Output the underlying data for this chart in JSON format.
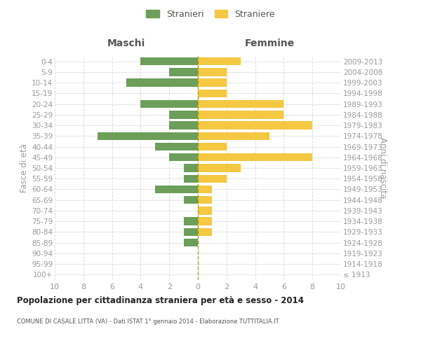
{
  "age_groups": [
    "100+",
    "95-99",
    "90-94",
    "85-89",
    "80-84",
    "75-79",
    "70-74",
    "65-69",
    "60-64",
    "55-59",
    "50-54",
    "45-49",
    "40-44",
    "35-39",
    "30-34",
    "25-29",
    "20-24",
    "15-19",
    "10-14",
    "5-9",
    "0-4"
  ],
  "birth_years": [
    "≤ 1913",
    "1914-1918",
    "1919-1923",
    "1924-1928",
    "1929-1933",
    "1934-1938",
    "1939-1943",
    "1944-1948",
    "1949-1953",
    "1954-1958",
    "1959-1963",
    "1964-1968",
    "1969-1973",
    "1974-1978",
    "1979-1983",
    "1984-1988",
    "1989-1993",
    "1994-1998",
    "1999-2003",
    "2004-2008",
    "2009-2013"
  ],
  "males": [
    0,
    0,
    0,
    1,
    1,
    1,
    0,
    1,
    3,
    1,
    1,
    2,
    3,
    7,
    2,
    2,
    4,
    0,
    5,
    2,
    4
  ],
  "females": [
    0,
    0,
    0,
    0,
    1,
    1,
    1,
    1,
    1,
    2,
    3,
    8,
    2,
    5,
    8,
    6,
    6,
    2,
    2,
    2,
    3
  ],
  "male_color": "#6d9e5a",
  "female_color": "#f5c842",
  "title": "Popolazione per cittadinanza straniera per età e sesso - 2014",
  "subtitle": "COMUNE DI CASALE LITTA (VA) - Dati ISTAT 1° gennaio 2014 - Elaborazione TUTTITALIA.IT",
  "ylabel_left": "Fasce di età",
  "ylabel_right": "Anni di nascita",
  "xlabel_left": "Maschi",
  "xlabel_right": "Femmine",
  "legend_male": "Stranieri",
  "legend_female": "Straniere",
  "xlim": 10,
  "background_color": "#ffffff",
  "grid_color": "#dddddd",
  "center_line_color": "#888800",
  "label_color": "#999999",
  "header_color": "#555555",
  "title_color": "#222222",
  "subtitle_color": "#555555"
}
